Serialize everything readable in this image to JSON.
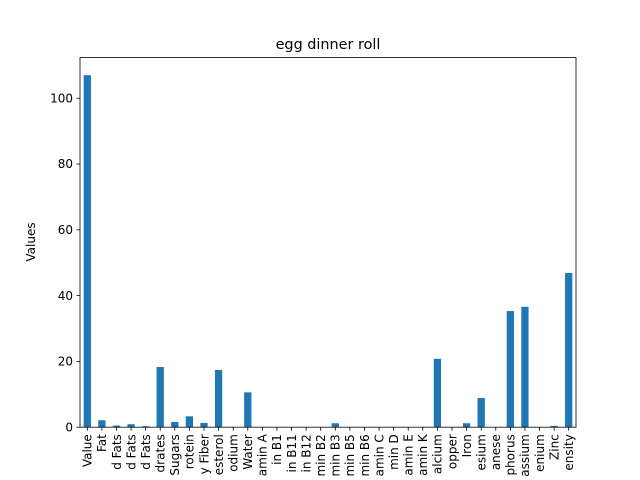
{
  "chart_data": {
    "type": "bar",
    "title": "egg dinner roll",
    "xlabel": "",
    "ylabel": "Values",
    "ylim": [
      0,
      112.35
    ],
    "yticks": [
      0,
      20,
      40,
      60,
      80,
      100
    ],
    "grid": false,
    "legend": "none",
    "bar_color": "#1f77b4",
    "categories": [
      "Value",
      "Fat",
      "d Fats",
      "d Fats",
      "d Fats",
      "drates",
      "Sugars",
      "rotein",
      "y Fiber",
      "esterol",
      "odium",
      "Water",
      "amin A",
      "in B1",
      "in B11",
      "in B12",
      "min B2",
      "min B3",
      "min B5",
      "min B6",
      "amin C",
      "min D",
      "amin E",
      "amin K",
      "alcium",
      "opper",
      "Iron",
      "esium",
      "anese",
      "phorus",
      "assium",
      "enium",
      "Zinc",
      "ensity"
    ],
    "values": [
      107,
      2.1,
      0.5,
      0.9,
      0.3,
      18.3,
      1.6,
      3.3,
      1.3,
      17.4,
      0,
      10.6,
      0,
      0,
      0,
      0,
      0,
      1.2,
      0,
      0,
      0,
      0,
      0,
      0,
      20.8,
      0,
      1.2,
      8.9,
      0,
      35.3,
      36.6,
      0,
      0.4,
      46.9
    ]
  }
}
